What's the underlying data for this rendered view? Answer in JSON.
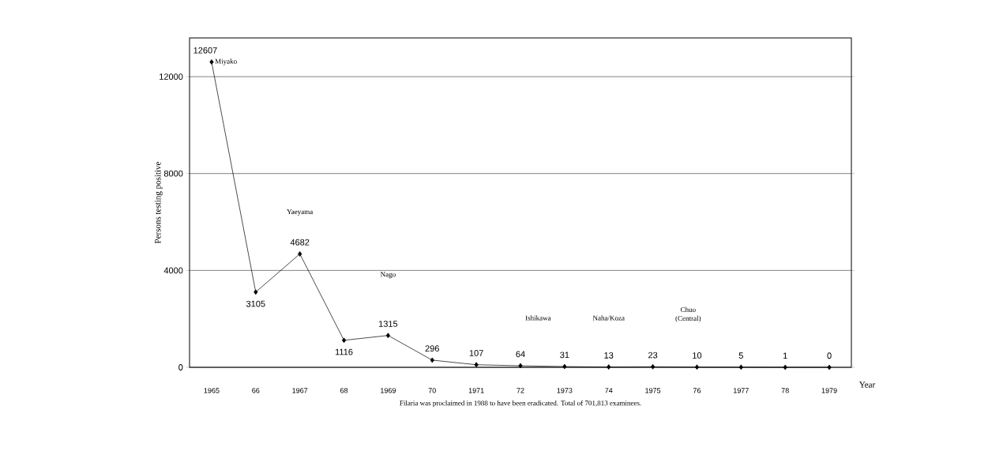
{
  "chart_data": {
    "type": "line",
    "ylabel": "Persons testing positive",
    "xlabel": "Year",
    "categories": [
      "1965",
      "66",
      "1967",
      "68",
      "1969",
      "70",
      "1971",
      "72",
      "1973",
      "74",
      "1975",
      "76",
      "1977",
      "78",
      "1979"
    ],
    "values": [
      12607,
      3105,
      4682,
      1116,
      1315,
      296,
      107,
      64,
      31,
      13,
      23,
      10,
      5,
      1,
      0
    ],
    "color": "#000000",
    "marker": "diamond",
    "line_style": "solid",
    "data_labels": true,
    "ylim": [
      0,
      13600
    ],
    "yticks": [
      0,
      4000,
      8000,
      12000
    ],
    "grid": "y",
    "annotations": [
      {
        "text": "Miyako",
        "x": "1965",
        "y": 12607
      },
      "Yaeyama",
      "Nago",
      "Ishikawa",
      "Naha/Koza",
      "Chuo (Central)",
      "Filaria was proclaimed in 1988 to have been eradicated.  Total of 701,813 examinees."
    ]
  }
}
